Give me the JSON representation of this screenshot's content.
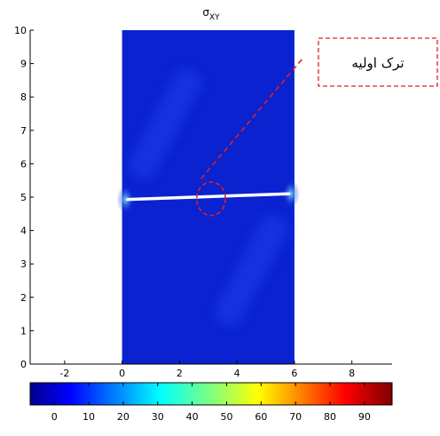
{
  "chart_data": {
    "type": "heatmap",
    "title": "σ",
    "title_subscript": "XY",
    "xlim": [
      -3.2,
      9.4
    ],
    "ylim": [
      0,
      10
    ],
    "xticks": [
      -2,
      0,
      2,
      4,
      6,
      8
    ],
    "yticks": [
      0,
      1,
      2,
      3,
      4,
      5,
      6,
      7,
      8,
      9,
      10
    ],
    "domain": {
      "x": [
        0,
        6
      ],
      "y": [
        0,
        10
      ]
    },
    "crack": {
      "x": [
        0.2,
        5.8
      ],
      "y": [
        4.93,
        5.1
      ]
    },
    "crack_circle": {
      "x": 3.1,
      "y": 4.95,
      "rx": 0.5,
      "ry": 0.5
    },
    "colorbar": {
      "range": [
        -7,
        98
      ],
      "ticks": [
        0,
        10,
        20,
        30,
        40,
        50,
        60,
        70,
        80,
        90
      ]
    },
    "annotation": {
      "text": "ترک اولیه",
      "arrow_color": "#e02020"
    },
    "colors": {
      "field": "#0a22d0",
      "crack": "#ffffff",
      "arrow": "#e02020"
    }
  }
}
